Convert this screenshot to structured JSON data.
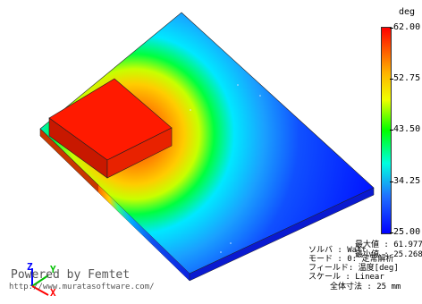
{
  "app": {
    "brand": "Powered by Femtet",
    "url": "http://www.muratasoftware.com/"
  },
  "legend": {
    "unit": "deg",
    "ticks": [
      "62.00",
      "52.75",
      "43.50",
      "34.25",
      "25.00"
    ],
    "max_label": "最大値 : 61.977",
    "min_label": "最小値 : 25.268",
    "colors": [
      "#ff0000",
      "#ffb300",
      "#f0ff00",
      "#00ff00",
      "#00ffe0",
      "#2070ff",
      "#0000ff"
    ]
  },
  "info": {
    "solver": "ソルバ   : Watt",
    "mode": "モード   : 0: 定常解析",
    "field": "フィールド: 温度[deg]",
    "scale": "スケール : Linear",
    "overall_size": "全体寸法 : 25 mm"
  },
  "axes": {
    "x": "X",
    "y": "Y",
    "z": "Z",
    "x_color": "#ff0000",
    "y_color": "#00c000",
    "z_color": "#0000ff"
  }
}
